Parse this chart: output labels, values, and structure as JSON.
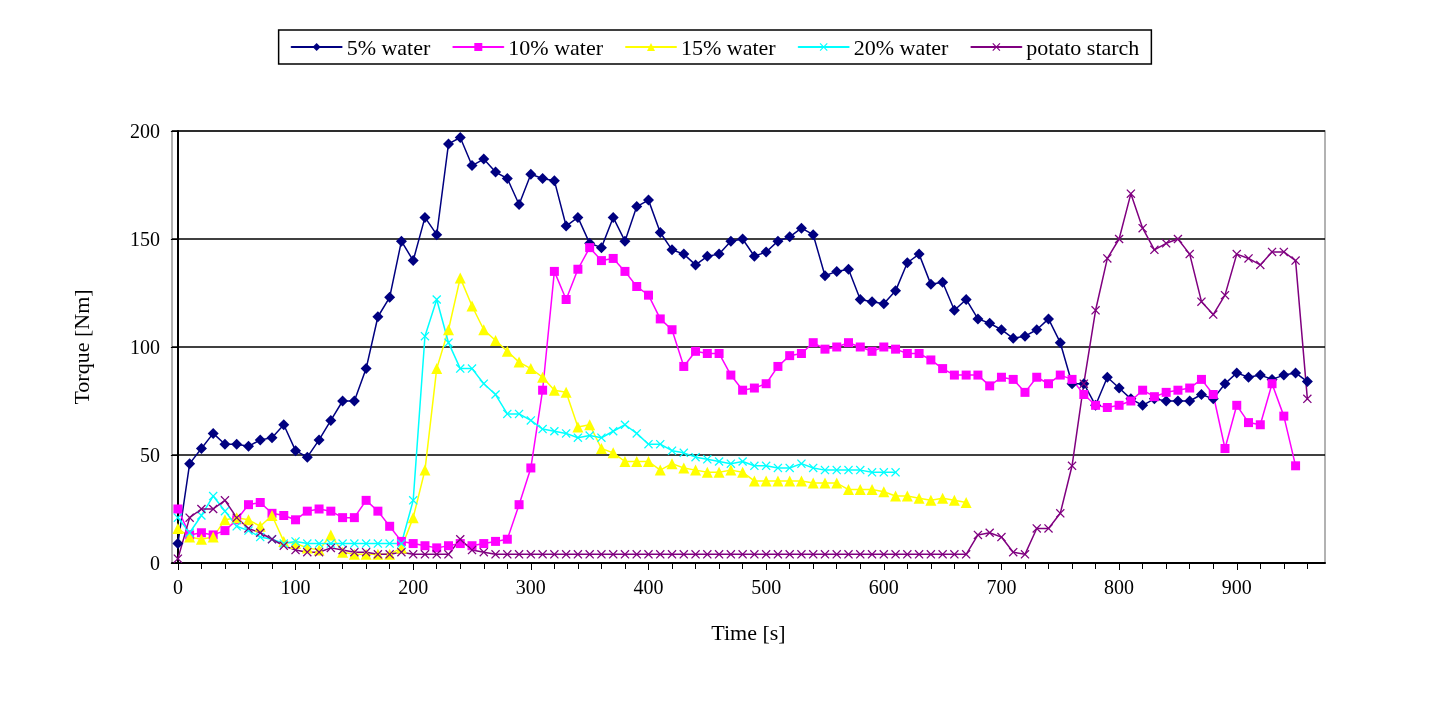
{
  "chart_data": {
    "type": "line",
    "xlabel": "Time [s]",
    "ylabel": "Torque [Nm]",
    "x": [
      0,
      10,
      20,
      30,
      40,
      50,
      60,
      70,
      80,
      90,
      100,
      110,
      120,
      130,
      140,
      150,
      160,
      170,
      180,
      190,
      200,
      210,
      220,
      230,
      240,
      250,
      260,
      270,
      280,
      290,
      300,
      310,
      320,
      330,
      340,
      350,
      360,
      370,
      380,
      390,
      400,
      410,
      420,
      430,
      440,
      450,
      460,
      470,
      480,
      490,
      500,
      510,
      520,
      530,
      540,
      550,
      560,
      570,
      580,
      590,
      600,
      610,
      620,
      630,
      640,
      650,
      660,
      670,
      680,
      690,
      700,
      710,
      720,
      730,
      740,
      750,
      760,
      770,
      780,
      790,
      800,
      810,
      820,
      830,
      840,
      850,
      860,
      870,
      880,
      890,
      900,
      910,
      920,
      930,
      940,
      950,
      960
    ],
    "series": [
      {
        "name": "5% water",
        "color": "#000080",
        "marker": "diamond",
        "values": [
          9,
          46,
          53,
          60,
          55,
          55,
          54,
          57,
          58,
          64,
          52,
          49,
          57,
          66,
          75,
          75,
          90,
          114,
          123,
          149,
          140,
          160,
          152,
          194,
          197,
          184,
          187,
          181,
          178,
          166,
          180,
          178,
          177,
          156,
          160,
          148,
          146,
          160,
          149,
          165,
          168,
          153,
          145,
          143,
          138,
          142,
          143,
          149,
          150,
          142,
          144,
          149,
          151,
          155,
          152,
          133,
          135,
          136,
          122,
          121,
          120,
          126,
          139,
          143,
          129,
          130,
          117,
          122,
          113,
          111,
          108,
          104,
          105,
          108,
          113,
          102,
          83,
          83,
          73,
          86,
          81,
          76,
          73,
          76,
          75,
          75,
          75,
          78,
          76,
          83,
          88,
          86,
          87,
          85,
          87,
          88,
          84
        ]
      },
      {
        "name": "10% water",
        "color": "#ff00ff",
        "marker": "square",
        "values": [
          25,
          13,
          14,
          13,
          15,
          20,
          27,
          28,
          23,
          22,
          20,
          24,
          25,
          24,
          21,
          21,
          29,
          24,
          17,
          10,
          9,
          8,
          7,
          8,
          9,
          8,
          9,
          10,
          11,
          27,
          44,
          80,
          135,
          122,
          136,
          146,
          140,
          141,
          135,
          128,
          124,
          113,
          108,
          91,
          98,
          97,
          97,
          87,
          80,
          81,
          83,
          91,
          96,
          97,
          102,
          99,
          100,
          102,
          100,
          98,
          100,
          99,
          97,
          97,
          94,
          90,
          87,
          87,
          87,
          82,
          86,
          85,
          79,
          86,
          83,
          87,
          85,
          78,
          73,
          72,
          73,
          75,
          80,
          77,
          79,
          80,
          81,
          85,
          78,
          53,
          73,
          65,
          64,
          83,
          68,
          45,
          null
        ]
      },
      {
        "name": "15% water",
        "color": "#ffff00",
        "marker": "triangle",
        "values": [
          16,
          12,
          11,
          12,
          20,
          21,
          20,
          17,
          22,
          10,
          9,
          7,
          6,
          13,
          5,
          4,
          4,
          4,
          4,
          7,
          21,
          43,
          90,
          108,
          132,
          119,
          108,
          103,
          98,
          93,
          90,
          86,
          80,
          79,
          63,
          64,
          53,
          51,
          47,
          47,
          47,
          43,
          46,
          44,
          43,
          42,
          42,
          43,
          42,
          38,
          38,
          38,
          38,
          38,
          37,
          37,
          37,
          34,
          34,
          34,
          33,
          31,
          31,
          30,
          29,
          30,
          29,
          28,
          null,
          null,
          null,
          null,
          null,
          null,
          null,
          null,
          null,
          null,
          null,
          null,
          null,
          null,
          null,
          null,
          null,
          null,
          null,
          null,
          null,
          null,
          null,
          null,
          null,
          null,
          null,
          null,
          null
        ]
      },
      {
        "name": "20% water",
        "color": "#00ffff",
        "marker": "cross",
        "values": [
          21,
          14,
          22,
          31,
          24,
          17,
          15,
          12,
          11,
          9,
          10,
          9,
          9,
          9,
          9,
          9,
          9,
          9,
          9,
          9,
          29,
          105,
          122,
          102,
          90,
          90,
          83,
          78,
          69,
          69,
          66,
          62,
          61,
          60,
          58,
          59,
          58,
          61,
          64,
          60,
          55,
          55,
          52,
          51,
          49,
          48,
          47,
          46,
          47,
          45,
          45,
          44,
          44,
          46,
          44,
          43,
          43,
          43,
          43,
          42,
          42,
          42,
          null,
          null,
          null,
          null,
          null,
          null,
          null,
          null,
          null,
          null,
          null,
          null,
          null,
          null,
          null,
          null,
          null,
          null,
          null,
          null,
          null,
          null,
          null,
          null,
          null,
          null,
          null,
          null,
          null,
          null,
          null,
          null,
          null,
          null,
          null
        ]
      },
      {
        "name": "potato starch",
        "color": "#800080",
        "marker": "cross",
        "values": [
          2,
          21,
          25,
          25,
          29,
          21,
          16,
          14,
          11,
          8,
          6,
          5,
          5,
          7,
          6,
          5,
          5,
          4,
          4,
          5,
          4,
          4,
          4,
          4,
          11,
          6,
          5,
          4,
          4,
          4,
          4,
          4,
          4,
          4,
          4,
          4,
          4,
          4,
          4,
          4,
          4,
          4,
          4,
          4,
          4,
          4,
          4,
          4,
          4,
          4,
          4,
          4,
          4,
          4,
          4,
          4,
          4,
          4,
          4,
          4,
          4,
          4,
          4,
          4,
          4,
          4,
          4,
          4,
          13,
          14,
          12,
          5,
          4,
          16,
          16,
          23,
          45,
          83,
          117,
          141,
          150,
          171,
          155,
          145,
          148,
          150,
          143,
          121,
          115,
          124,
          143,
          141,
          138,
          144,
          144,
          140,
          76
        ]
      }
    ],
    "xlim": [
      -5,
      975
    ],
    "xticks": [
      0,
      100,
      200,
      300,
      400,
      500,
      600,
      700,
      800,
      900
    ],
    "ylim": [
      0,
      200
    ],
    "yticks": [
      0,
      50,
      100,
      150,
      200
    ],
    "grid": "y",
    "legend": "top"
  }
}
